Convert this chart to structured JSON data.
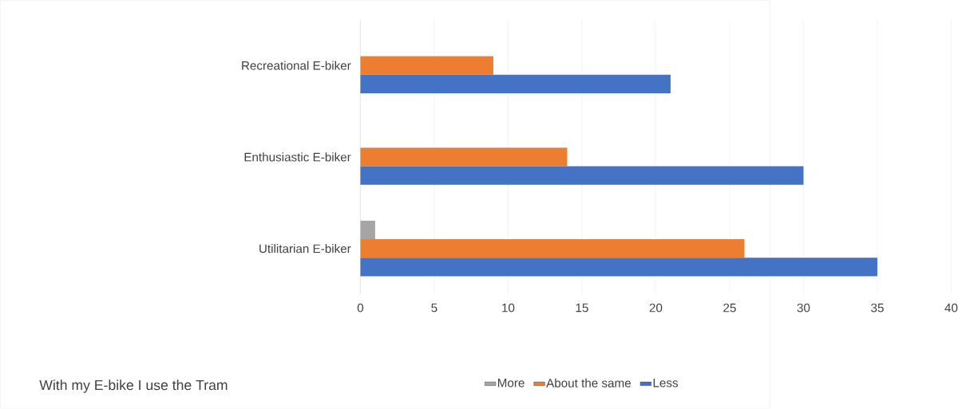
{
  "chart_data": {
    "type": "bar",
    "orientation": "horizontal",
    "categories": [
      "Recreational E-biker",
      "Enthusiastic E-biker",
      "Utilitarian E-biker"
    ],
    "series": [
      {
        "name": "More",
        "color": "#a5a5a5",
        "values": [
          0,
          0,
          1
        ]
      },
      {
        "name": "About the same",
        "color": "#ed7d31",
        "values": [
          9,
          14,
          26
        ]
      },
      {
        "name": "Less",
        "color": "#4472c4",
        "values": [
          21,
          30,
          35
        ]
      }
    ],
    "legend_title": "With my E-bike I use the Tram",
    "xlim": [
      0,
      40
    ],
    "xticks": [
      0,
      5,
      10,
      15,
      20,
      25,
      30,
      35,
      40
    ],
    "grid": "x",
    "legend": "bottom"
  }
}
